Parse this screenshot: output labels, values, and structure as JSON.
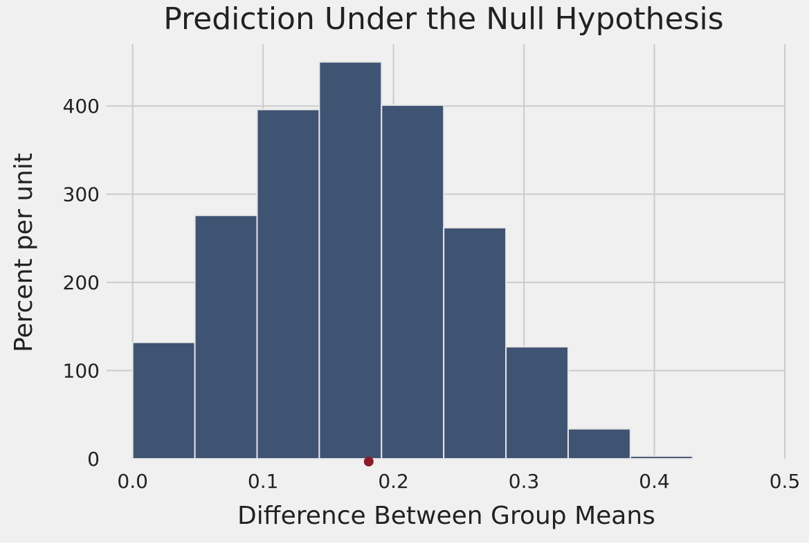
{
  "chart_data": {
    "type": "bar",
    "title": "Prediction Under the Null Hypothesis",
    "xlabel": "Difference Between Group Means",
    "ylabel": "Percent per unit",
    "xlim": [
      -0.02,
      0.5
    ],
    "ylim": [
      0,
      470
    ],
    "xticks": [
      {
        "value": 0.0,
        "label": "0.0"
      },
      {
        "value": 0.1,
        "label": "0.1"
      },
      {
        "value": 0.2,
        "label": "0.2"
      },
      {
        "value": 0.3,
        "label": "0.3"
      },
      {
        "value": 0.4,
        "label": "0.4"
      },
      {
        "value": 0.5,
        "label": "0.5"
      }
    ],
    "yticks": [
      {
        "value": 0,
        "label": "0"
      },
      {
        "value": 100,
        "label": "100"
      },
      {
        "value": 200,
        "label": "200"
      },
      {
        "value": 300,
        "label": "300"
      },
      {
        "value": 400,
        "label": "400"
      }
    ],
    "bins": [
      {
        "start": 0.0,
        "end": 0.0477,
        "value": 132
      },
      {
        "start": 0.0477,
        "end": 0.0954,
        "value": 276
      },
      {
        "start": 0.0954,
        "end": 0.1431,
        "value": 396
      },
      {
        "start": 0.1431,
        "end": 0.1908,
        "value": 450
      },
      {
        "start": 0.1908,
        "end": 0.2385,
        "value": 401
      },
      {
        "start": 0.2385,
        "end": 0.2862,
        "value": 262
      },
      {
        "start": 0.2862,
        "end": 0.3339,
        "value": 127
      },
      {
        "start": 0.3339,
        "end": 0.3816,
        "value": 34
      },
      {
        "start": 0.3816,
        "end": 0.4293,
        "value": 3
      }
    ],
    "observed_point": {
      "x": 0.181,
      "y": 0
    },
    "grid": true,
    "colors": {
      "background": "#f0f0f0",
      "grid": "#cbcbcb",
      "bar_fill": "#3f5372",
      "bar_edge": "#e6e6e6",
      "point": "#8b1a2b"
    }
  }
}
